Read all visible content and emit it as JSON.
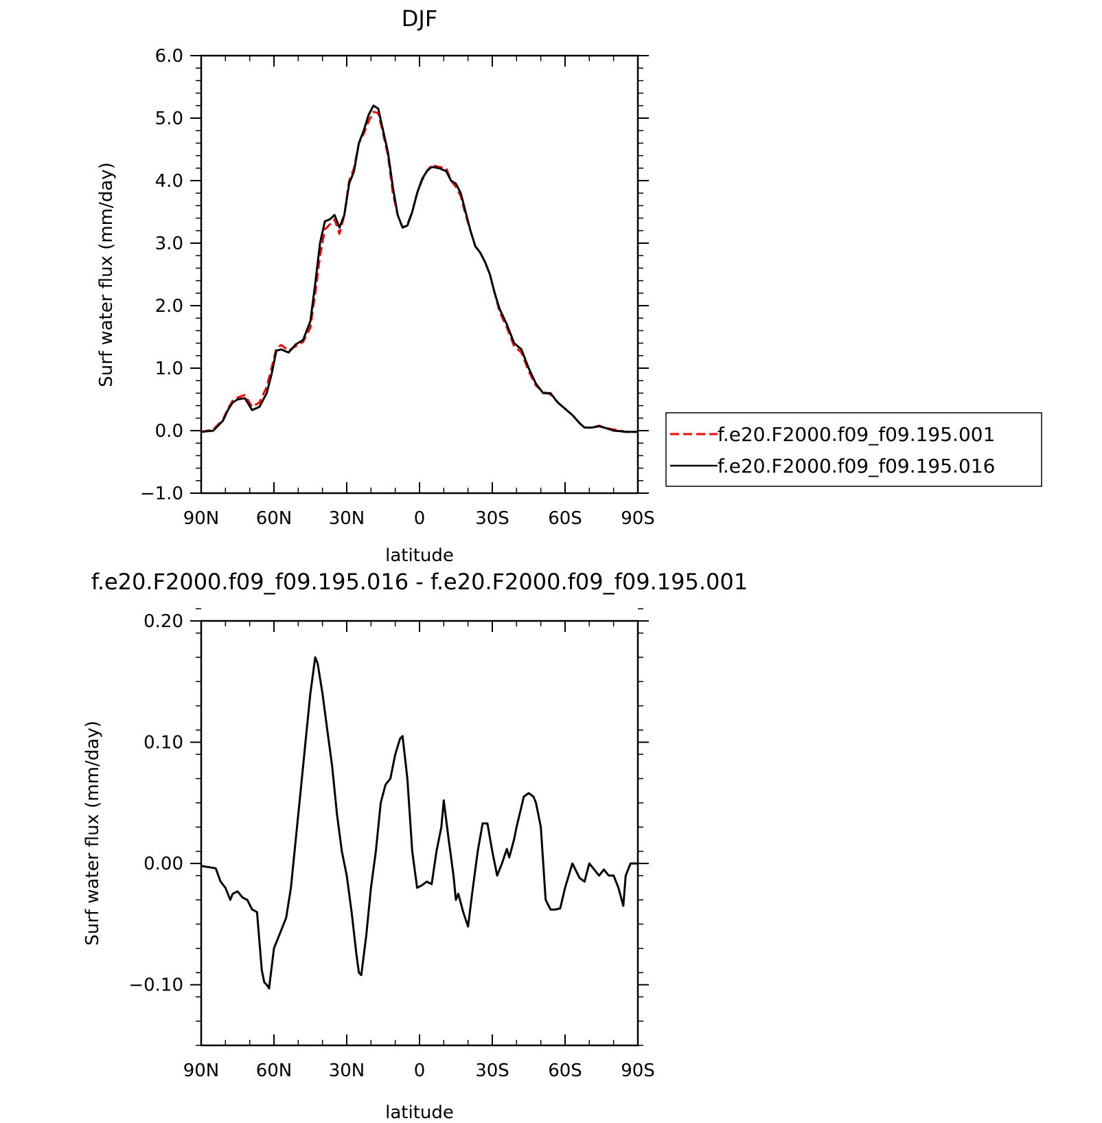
{
  "chart_data": [
    {
      "type": "line",
      "title": "DJF",
      "xlabel": "latitude",
      "ylabel": "Surf water flux (mm/day)",
      "x_ticks": [
        "90N",
        "60N",
        "30N",
        "0",
        "30S",
        "60S",
        "90S"
      ],
      "y_ticks": [
        "6.0",
        "5.0",
        "4.0",
        "3.0",
        "2.0",
        "1.0",
        "0.0",
        "-1.0"
      ],
      "xlim": [
        90,
        -90
      ],
      "ylim": [
        -1.0,
        6.0
      ],
      "legend_position": "right",
      "series": [
        {
          "name": "f.e20.F2000.f09_f09.195.001",
          "color": "#ff0000",
          "dash": "dashed",
          "x": [
            90,
            85,
            81,
            79,
            77,
            75,
            72,
            69,
            66,
            63,
            61,
            59,
            57,
            54,
            51,
            48,
            45,
            43,
            41,
            39,
            37,
            35,
            33,
            31,
            29,
            27,
            25,
            23,
            21,
            19,
            17,
            15,
            13,
            11,
            9,
            7,
            5,
            3,
            1,
            -1,
            -3,
            -5,
            -8,
            -11,
            -13,
            -15,
            -17,
            -19,
            -21,
            -23,
            -25,
            -27,
            -29,
            -31,
            -33,
            -36,
            -39,
            -42,
            -45,
            -48,
            -51,
            -54,
            -57,
            -60,
            -63,
            -66,
            -68,
            -71,
            -74,
            -77,
            -80,
            -83,
            -85,
            -87,
            -90
          ],
          "y": [
            -0.02,
            0.02,
            0.18,
            0.35,
            0.48,
            0.53,
            0.57,
            0.38,
            0.45,
            0.7,
            1.0,
            1.32,
            1.37,
            1.28,
            1.35,
            1.42,
            1.65,
            2.2,
            2.8,
            3.22,
            3.3,
            3.38,
            3.15,
            3.45,
            4.0,
            4.2,
            4.6,
            4.75,
            4.95,
            5.1,
            5.08,
            4.75,
            4.4,
            3.8,
            3.45,
            3.25,
            3.3,
            3.5,
            3.8,
            4.0,
            4.15,
            4.25,
            4.22,
            4.2,
            4.0,
            3.9,
            3.75,
            3.45,
            3.2,
            2.95,
            2.85,
            2.7,
            2.5,
            2.2,
            1.9,
            1.65,
            1.35,
            1.25,
            0.95,
            0.72,
            0.62,
            0.58,
            0.45,
            0.35,
            0.25,
            0.12,
            0.05,
            0.05,
            0.08,
            0.04,
            0.02,
            0.0,
            -0.02,
            -0.02,
            -0.02
          ]
        },
        {
          "name": "f.e20.F2000.f09_f09.195.016",
          "color": "#000000",
          "dash": "solid",
          "x": [
            90,
            85,
            81,
            79,
            77,
            75,
            72,
            69,
            66,
            63,
            61,
            59,
            57,
            54,
            51,
            48,
            45,
            43,
            41,
            39,
            37,
            35,
            33,
            31,
            29,
            27,
            25,
            23,
            21,
            19,
            17,
            15,
            13,
            11,
            9,
            7,
            5,
            3,
            1,
            -1,
            -3,
            -5,
            -8,
            -11,
            -13,
            -15,
            -17,
            -19,
            -21,
            -23,
            -25,
            -27,
            -29,
            -31,
            -33,
            -36,
            -39,
            -42,
            -45,
            -48,
            -51,
            -54,
            -57,
            -60,
            -63,
            -66,
            -68,
            -71,
            -74,
            -77,
            -80,
            -83,
            -85,
            -87,
            -90
          ],
          "y": [
            -0.02,
            0.0,
            0.16,
            0.33,
            0.45,
            0.5,
            0.52,
            0.33,
            0.38,
            0.6,
            0.9,
            1.28,
            1.3,
            1.25,
            1.38,
            1.45,
            1.75,
            2.35,
            3.0,
            3.35,
            3.38,
            3.45,
            3.25,
            3.45,
            3.95,
            4.15,
            4.6,
            4.8,
            5.05,
            5.2,
            5.15,
            4.8,
            4.45,
            3.9,
            3.45,
            3.25,
            3.28,
            3.5,
            3.8,
            4.02,
            4.15,
            4.22,
            4.2,
            4.15,
            4.0,
            3.95,
            3.8,
            3.5,
            3.2,
            2.95,
            2.85,
            2.7,
            2.5,
            2.2,
            1.95,
            1.7,
            1.4,
            1.3,
            1.0,
            0.75,
            0.6,
            0.6,
            0.45,
            0.35,
            0.25,
            0.12,
            0.05,
            0.05,
            0.07,
            0.04,
            0.0,
            -0.01,
            -0.02,
            -0.02,
            -0.02
          ]
        }
      ]
    },
    {
      "type": "line",
      "title": "f.e20.F2000.f09_f09.195.016 - f.e20.F2000.f09_f09.195.001",
      "xlabel": "latitude",
      "ylabel": "Surf water flux (mm/day)",
      "x_ticks": [
        "90N",
        "60N",
        "30N",
        "0",
        "30S",
        "60S",
        "90S"
      ],
      "y_ticks": [
        "0.20",
        "0.10",
        "0.00",
        "-0.10"
      ],
      "xlim": [
        90,
        -90
      ],
      "ylim": [
        -0.15,
        0.2
      ],
      "series": [
        {
          "color": "#000000",
          "x": [
            90,
            84,
            82,
            80,
            78,
            77,
            75,
            73,
            71,
            69,
            67,
            65,
            64,
            63,
            62,
            60,
            58,
            56,
            55,
            53,
            51,
            49,
            47,
            45,
            43,
            42,
            40,
            38,
            36,
            34,
            32,
            30,
            28,
            26,
            25,
            24,
            22,
            20,
            18,
            16,
            14,
            12,
            11,
            10,
            8,
            7,
            5,
            3,
            1,
            -1,
            -3,
            -5,
            -7,
            -9,
            -10,
            -12,
            -14,
            -15,
            -16,
            -18,
            -20,
            -22,
            -24,
            -26,
            -28,
            -30,
            -32,
            -34,
            -36,
            -37,
            -39,
            -40,
            -43,
            -45,
            -47,
            -48,
            -50,
            -52,
            -54,
            -56,
            -58,
            -60,
            -63,
            -66,
            -68,
            -70,
            -72,
            -74,
            -76,
            -78,
            -80,
            -82,
            -84,
            -85,
            -87,
            -90
          ],
          "y": [
            -0.002,
            -0.004,
            -0.015,
            -0.02,
            -0.03,
            -0.025,
            -0.023,
            -0.028,
            -0.03,
            -0.038,
            -0.04,
            -0.088,
            -0.098,
            -0.1,
            -0.103,
            -0.07,
            -0.06,
            -0.05,
            -0.045,
            -0.02,
            0.02,
            0.06,
            0.1,
            0.14,
            0.17,
            0.165,
            0.14,
            0.11,
            0.08,
            0.04,
            0.01,
            -0.01,
            -0.04,
            -0.075,
            -0.09,
            -0.092,
            -0.06,
            -0.02,
            0.01,
            0.05,
            0.065,
            0.07,
            0.08,
            0.09,
            0.103,
            0.105,
            0.07,
            0.01,
            -0.02,
            -0.018,
            -0.015,
            -0.017,
            0.01,
            0.03,
            0.052,
            0.02,
            -0.01,
            -0.03,
            -0.025,
            -0.04,
            -0.052,
            -0.02,
            0.01,
            0.033,
            0.033,
            0.01,
            -0.01,
            0.0,
            0.012,
            0.005,
            0.02,
            0.03,
            0.055,
            0.058,
            0.055,
            0.05,
            0.03,
            -0.03,
            -0.038,
            -0.038,
            -0.037,
            -0.02,
            0.0,
            -0.012,
            -0.015,
            0.0,
            -0.005,
            -0.01,
            -0.005,
            -0.01,
            -0.01,
            -0.02,
            -0.035,
            -0.01,
            0.0,
            0.0
          ]
        }
      ]
    }
  ]
}
